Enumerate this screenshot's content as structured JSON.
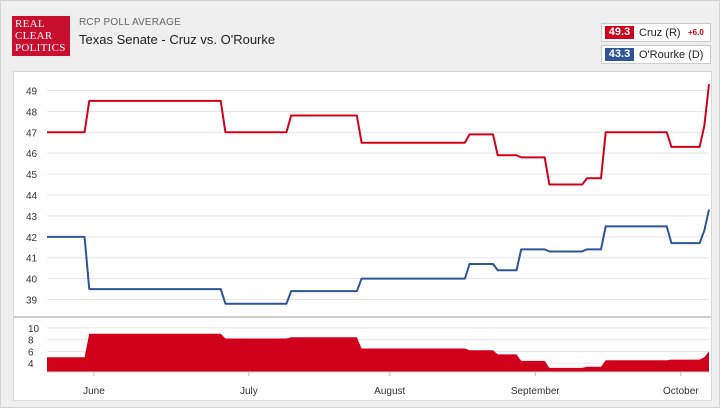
{
  "header": {
    "logo_lines": [
      "REAL",
      "CLEAR",
      "POLITICS"
    ],
    "kicker": "RCP POLL AVERAGE",
    "title": "Texas Senate - Cruz vs. O'Rourke"
  },
  "legend": [
    {
      "value": "49.3",
      "name": "Cruz (R)",
      "spread": "+6.0",
      "color": "#d0021b"
    },
    {
      "value": "43.3",
      "name": "O'Rourke (D)",
      "spread": "",
      "color": "#2f5597"
    }
  ],
  "chart_data": {
    "type": "line",
    "x_months": [
      "June",
      "July",
      "August",
      "September",
      "October"
    ],
    "main_y_ticks": [
      39,
      40,
      41,
      42,
      43,
      44,
      45,
      46,
      47,
      48,
      49
    ],
    "spread_y_ticks": [
      4,
      6,
      8,
      10
    ],
    "series": [
      {
        "name": "Cruz (R)",
        "color": "#d0021b",
        "x": [
          "05-27",
          "06-04",
          "06-05",
          "07-03",
          "07-04",
          "07-17",
          "07-18",
          "08-01",
          "08-02",
          "08-24",
          "08-25",
          "08-30",
          "08-31",
          "09-04",
          "09-05",
          "09-10",
          "09-11",
          "09-18",
          "09-19",
          "09-22",
          "09-23",
          "09-25",
          "09-26",
          "10-06",
          "10-07",
          "10-13",
          "10-14",
          "10-15"
        ],
        "values": [
          47.0,
          47.0,
          48.5,
          48.5,
          47.0,
          47.0,
          47.8,
          47.8,
          46.5,
          46.5,
          46.9,
          46.9,
          45.9,
          45.9,
          45.8,
          45.8,
          44.5,
          44.5,
          44.8,
          44.8,
          47.0,
          47.0,
          47.0,
          47.0,
          46.3,
          46.3,
          47.3,
          49.3
        ]
      },
      {
        "name": "O'Rourke (D)",
        "color": "#2f5597",
        "x": [
          "05-27",
          "06-04",
          "06-05",
          "07-03",
          "07-04",
          "07-17",
          "07-18",
          "08-01",
          "08-02",
          "08-24",
          "08-25",
          "08-30",
          "08-31",
          "09-04",
          "09-05",
          "09-10",
          "09-11",
          "09-18",
          "09-19",
          "09-22",
          "09-23",
          "09-25",
          "09-26",
          "10-06",
          "10-07",
          "10-13",
          "10-14",
          "10-15"
        ],
        "values": [
          42.0,
          42.0,
          39.5,
          39.5,
          38.8,
          38.8,
          39.4,
          39.4,
          40.0,
          40.0,
          40.7,
          40.7,
          40.4,
          40.4,
          41.4,
          41.4,
          41.3,
          41.3,
          41.4,
          41.4,
          42.5,
          42.5,
          42.5,
          42.5,
          41.7,
          41.7,
          42.3,
          43.3
        ]
      }
    ],
    "spread_series": {
      "name": "Spread",
      "color": "#d0021b",
      "x": [
        "05-27",
        "06-04",
        "06-05",
        "07-03",
        "07-04",
        "07-17",
        "07-18",
        "08-01",
        "08-02",
        "08-24",
        "08-25",
        "08-30",
        "08-31",
        "09-04",
        "09-05",
        "09-10",
        "09-11",
        "09-18",
        "09-19",
        "09-22",
        "09-23",
        "09-25",
        "09-26",
        "10-06",
        "10-07",
        "10-13",
        "10-14",
        "10-15"
      ],
      "values": [
        5.0,
        5.0,
        9.0,
        9.0,
        8.2,
        8.2,
        8.4,
        8.4,
        6.5,
        6.5,
        6.2,
        6.2,
        5.5,
        5.5,
        4.4,
        4.4,
        3.2,
        3.2,
        3.4,
        3.4,
        4.5,
        4.5,
        4.5,
        4.5,
        4.6,
        4.6,
        5.0,
        6.0
      ]
    },
    "main_ylim": [
      38.5,
      49.5
    ],
    "spread_ylim": [
      2.5,
      11
    ],
    "xlim": [
      "05-27",
      "10-15"
    ],
    "grid": "horizontal"
  }
}
